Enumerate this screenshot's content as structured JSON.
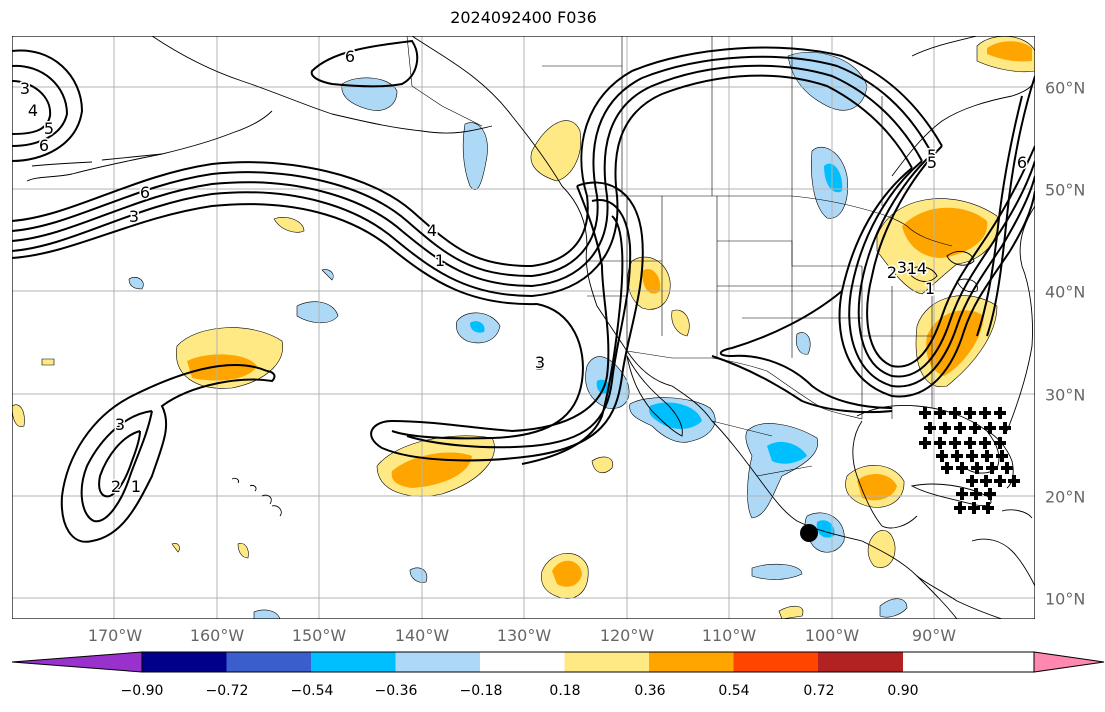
{
  "title": "2024092400 F036",
  "lon_labels": [
    "170°W",
    "160°W",
    "150°W",
    "140°W",
    "130°W",
    "120°W",
    "110°W",
    "100°W",
    "90°W"
  ],
  "lat_labels": [
    "60°N",
    "50°N",
    "40°N",
    "30°N",
    "20°N",
    "10°N"
  ],
  "colorbar": {
    "ticks": [
      "−0.90",
      "−0.72",
      "−0.54",
      "−0.36",
      "−0.18",
      "0.18",
      "0.36",
      "0.54",
      "0.72",
      "0.90"
    ],
    "colors": [
      "#9932cc",
      "#00008b",
      "#3a5fcd",
      "#00bfff",
      "#add8f6",
      "#ffffff",
      "#ffe985",
      "#ffa500",
      "#ff4500",
      "#b22222",
      "#ff88b0"
    ]
  },
  "contour_labels": [
    "6",
    "5",
    "4",
    "3",
    "6",
    "3",
    "4",
    "1",
    "3",
    "3",
    "2",
    "1",
    "6",
    "5",
    "4",
    "3",
    "2",
    "1",
    "6",
    "5",
    "1",
    "3"
  ],
  "colors": {
    "land_line": "#000000",
    "grid": "#b3b3b3",
    "contour": "#000000"
  }
}
